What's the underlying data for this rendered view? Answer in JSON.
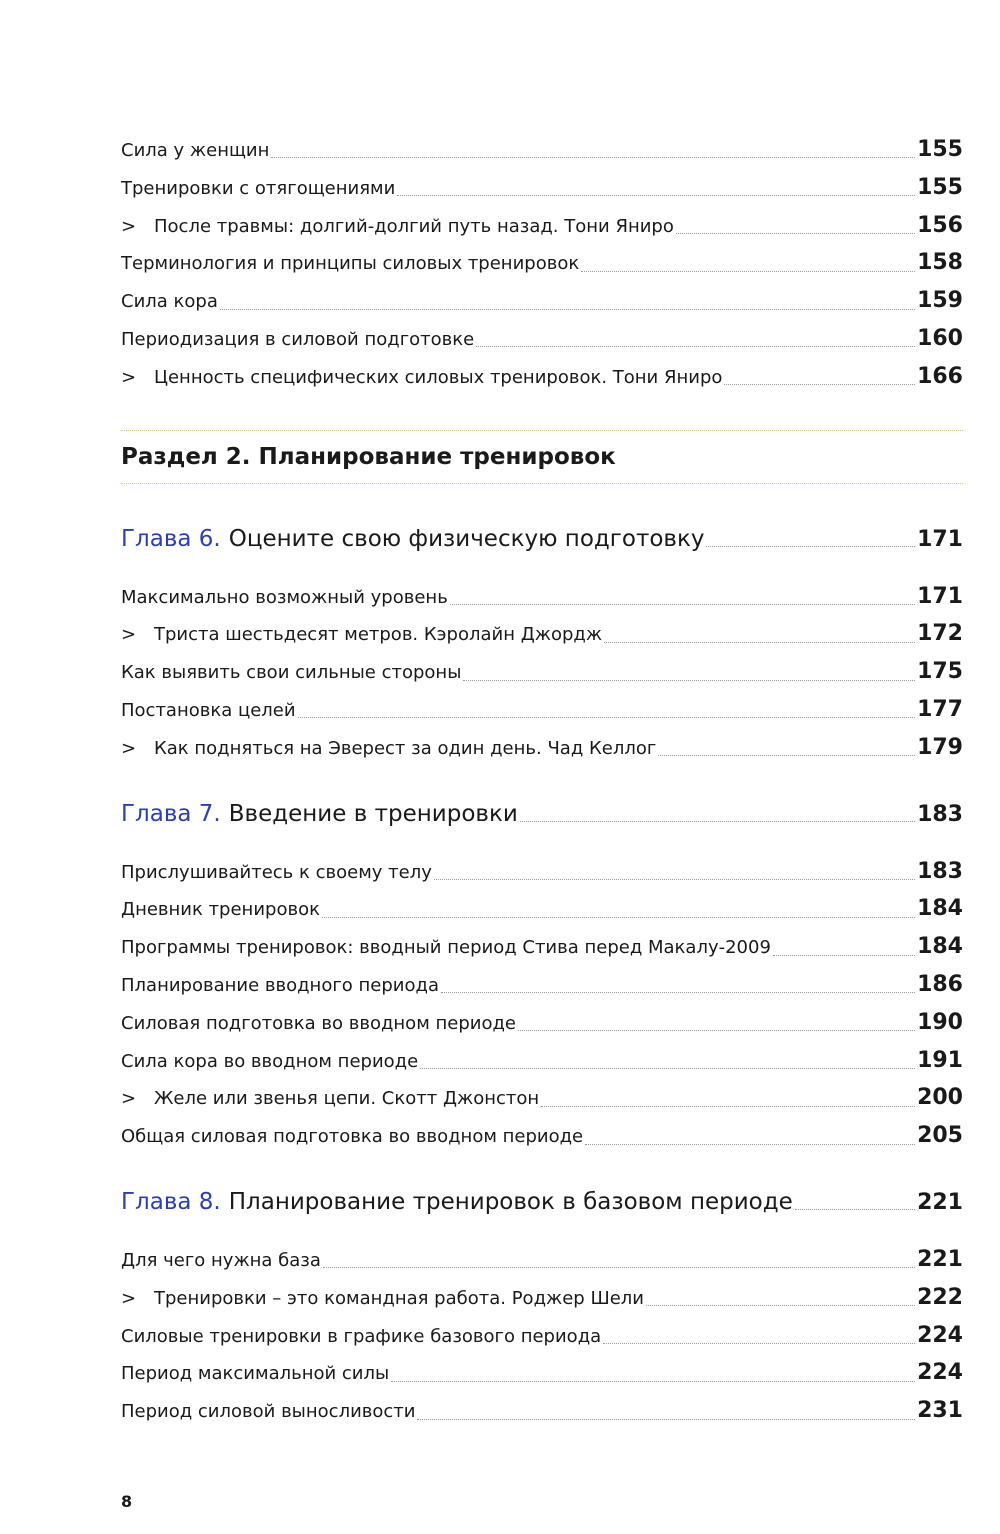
{
  "top": {
    "entries": [
      {
        "text": "Сила у женщин",
        "page": 155
      },
      {
        "text": "Тренировки с отягощениями",
        "page": 155
      },
      {
        "marker": ">",
        "text": "После травмы: долгий-долгий путь назад. Тони Яниро",
        "page": 156
      },
      {
        "text": "Терминология и принципы силовых тренировок",
        "page": 158
      },
      {
        "text": "Сила кора",
        "page": 159
      },
      {
        "text": "Периодизация в силовой подготовке",
        "page": 160
      },
      {
        "marker": ">",
        "text": "Ценность специфических силовых тренировок. Тони Яниро",
        "page": 166
      }
    ]
  },
  "section": {
    "title": "Раздел 2. Планирование тренировок"
  },
  "chapters": [
    {
      "label": "Глава 6.",
      "title": "Оцените свою физическую подготовку",
      "page": 171,
      "entries": [
        {
          "text": "Максимально возможный уровень",
          "page": 171
        },
        {
          "marker": ">",
          "text": "Триста шестьдесят метров. Кэролайн Джордж",
          "page": 172
        },
        {
          "text": "Как выявить свои сильные стороны",
          "page": 175
        },
        {
          "text": "Постановка целей",
          "page": 177
        },
        {
          "marker": ">",
          "text": "Как подняться на Эверест за один день. Чад Келлог",
          "page": 179
        }
      ]
    },
    {
      "label": "Глава 7.",
      "title": "Введение в тренировки",
      "page": 183,
      "entries": [
        {
          "text": "Прислушивайтесь к своему телу",
          "page": 183
        },
        {
          "text": "Дневник тренировок",
          "page": 184
        },
        {
          "text": "Программы тренировок: вводный период Стива перед Макалу-2009",
          "page": 184
        },
        {
          "text": "Планирование вводного периода",
          "page": 186
        },
        {
          "text": "Силовая подготовка во вводном периоде",
          "page": 190
        },
        {
          "text": "Сила кора во вводном периоде",
          "page": 191
        },
        {
          "marker": ">",
          "text": "Желе или звенья цепи. Скотт Джонстон",
          "page": 200
        },
        {
          "text": "Общая силовая подготовка во вводном периоде",
          "page": 205
        }
      ]
    },
    {
      "label": "Глава 8.",
      "title": "Планирование тренировок в базовом периоде",
      "page": 221,
      "entries": [
        {
          "text": "Для чего нужна база",
          "page": 221
        },
        {
          "marker": ">",
          "text": "Тренировки – это командная работа. Роджер Шели",
          "page": 222
        },
        {
          "text": "Силовые тренировки в графике базового периода",
          "page": 224
        },
        {
          "text": "Период максимальной силы",
          "page": 224
        },
        {
          "text": "Период силовой выносливости",
          "page": 231
        }
      ]
    }
  ],
  "page_number": 8
}
